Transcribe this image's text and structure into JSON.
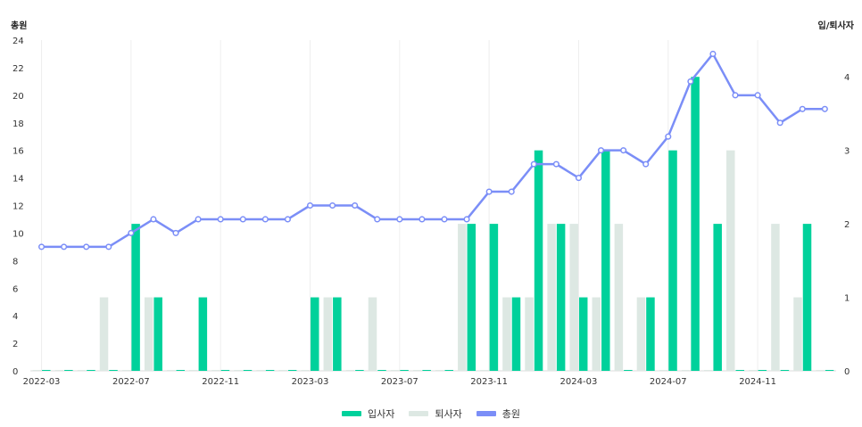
{
  "colors": {
    "joiners": "#00d19b",
    "leavers": "#dde8e3",
    "total": "#7b8ef7",
    "grid": "#eeeeee"
  },
  "chart_data": {
    "type": "bar",
    "y_left_label": "총원",
    "y_right_label": "입/퇴사자",
    "y_left_range": [
      0,
      24
    ],
    "y_right_range": [
      0,
      4.5
    ],
    "y_left_ticks": [
      "0",
      "2",
      "4",
      "6",
      "8",
      "10",
      "12",
      "14",
      "16",
      "18",
      "20",
      "22",
      "24"
    ],
    "y_right_ticks": [
      "0",
      "1",
      "2",
      "3",
      "4"
    ],
    "grid": "vertical lines at labeled months",
    "legend_position": "bottom",
    "categories": [
      "2022-03",
      "2022-04",
      "2022-05",
      "2022-06",
      "2022-07",
      "2022-08",
      "2022-09",
      "2022-10",
      "2022-11",
      "2022-12",
      "2023-01",
      "2023-02",
      "2023-03",
      "2023-04",
      "2023-05",
      "2023-06",
      "2023-07",
      "2023-08",
      "2023-09",
      "2023-10",
      "2023-11",
      "2023-12",
      "2024-01",
      "2024-02",
      "2024-03",
      "2024-04",
      "2024-05",
      "2024-06",
      "2024-07",
      "2024-08",
      "2024-09",
      "2024-10",
      "2024-11",
      "2024-12",
      "2025-01",
      "2025-02"
    ],
    "x_tick_labels": [
      "2022-03",
      "2022-07",
      "2022-11",
      "2023-03",
      "2023-07",
      "2023-11",
      "2024-03",
      "2024-07",
      "2024-11"
    ],
    "series": [
      {
        "name": "입사자",
        "kind": "bar",
        "axis": "right",
        "values": [
          0,
          0,
          0,
          0,
          2,
          1,
          0,
          1,
          0,
          0,
          0,
          0,
          1,
          1,
          0,
          0,
          0,
          0,
          0,
          2,
          2,
          1,
          3,
          2,
          1,
          3,
          0,
          1,
          3,
          4,
          2,
          0,
          0,
          0,
          2,
          0
        ]
      },
      {
        "name": "퇴사자",
        "kind": "bar",
        "axis": "right",
        "values": [
          0,
          0,
          0,
          1,
          0,
          1,
          0,
          0,
          0,
          0,
          0,
          0,
          0,
          1,
          0,
          1,
          0,
          0,
          0,
          2,
          0,
          1,
          1,
          2,
          2,
          1,
          2,
          1,
          0,
          0,
          0,
          3,
          0,
          2,
          1,
          0
        ]
      },
      {
        "name": "총원",
        "kind": "line",
        "axis": "left",
        "values": [
          9,
          9,
          9,
          9,
          10,
          11,
          10,
          11,
          11,
          11,
          11,
          11,
          12,
          12,
          12,
          11,
          11,
          11,
          11,
          11,
          13,
          13,
          15,
          15,
          14,
          16,
          16,
          15,
          17,
          21,
          23,
          20,
          20,
          18,
          19,
          19
        ]
      }
    ]
  }
}
